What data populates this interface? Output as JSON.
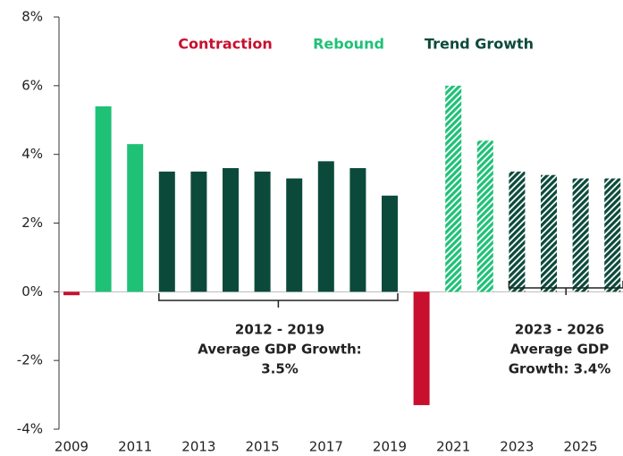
{
  "chart_data": {
    "type": "bar",
    "categories": [
      "2009",
      null,
      "2011",
      null,
      "2013",
      null,
      "2015",
      null,
      "2017",
      null,
      "2019",
      null,
      "2021",
      null,
      "2023",
      null,
      "2025",
      null
    ],
    "series": [
      {
        "name": "Contraction",
        "color": "#c8102e",
        "values": [
          -0.1,
          null,
          null,
          null,
          null,
          null,
          null,
          null,
          null,
          null,
          null,
          -3.3,
          null,
          null,
          null,
          null,
          null,
          null
        ]
      },
      {
        "name": "Rebound",
        "color": "#1fc177",
        "values": [
          null,
          5.4,
          4.3,
          null,
          null,
          null,
          null,
          null,
          null,
          null,
          null,
          null,
          6.0,
          4.4,
          null,
          null,
          null,
          null
        ]
      },
      {
        "name": "Trend Growth",
        "color": "#0b4a3a",
        "values": [
          null,
          null,
          null,
          3.5,
          3.5,
          3.6,
          3.5,
          3.3,
          3.8,
          3.6,
          2.8,
          null,
          null,
          null,
          3.5,
          3.4,
          3.3,
          3.3
        ]
      }
    ],
    "hatched": [
      false,
      false,
      false,
      false,
      false,
      false,
      false,
      false,
      false,
      false,
      false,
      false,
      true,
      true,
      true,
      true,
      true,
      true
    ],
    "ylim": [
      -4,
      8
    ],
    "yticks": [
      {
        "value": -4,
        "label": "-4%"
      },
      {
        "value": -2,
        "label": "-2%"
      },
      {
        "value": 0,
        "label": "0%"
      },
      {
        "value": 2,
        "label": "2%"
      },
      {
        "value": 4,
        "label": "4%"
      },
      {
        "value": 6,
        "label": "6%"
      },
      {
        "value": 8,
        "label": "8%"
      }
    ],
    "annotations": [
      {
        "lines": [
          "2012 - 2019",
          "Average GDP Growth:",
          "3.5%"
        ]
      },
      {
        "lines": [
          "2023 - 2026",
          "Average GDP",
          "Growth: 3.4%"
        ]
      }
    ]
  }
}
